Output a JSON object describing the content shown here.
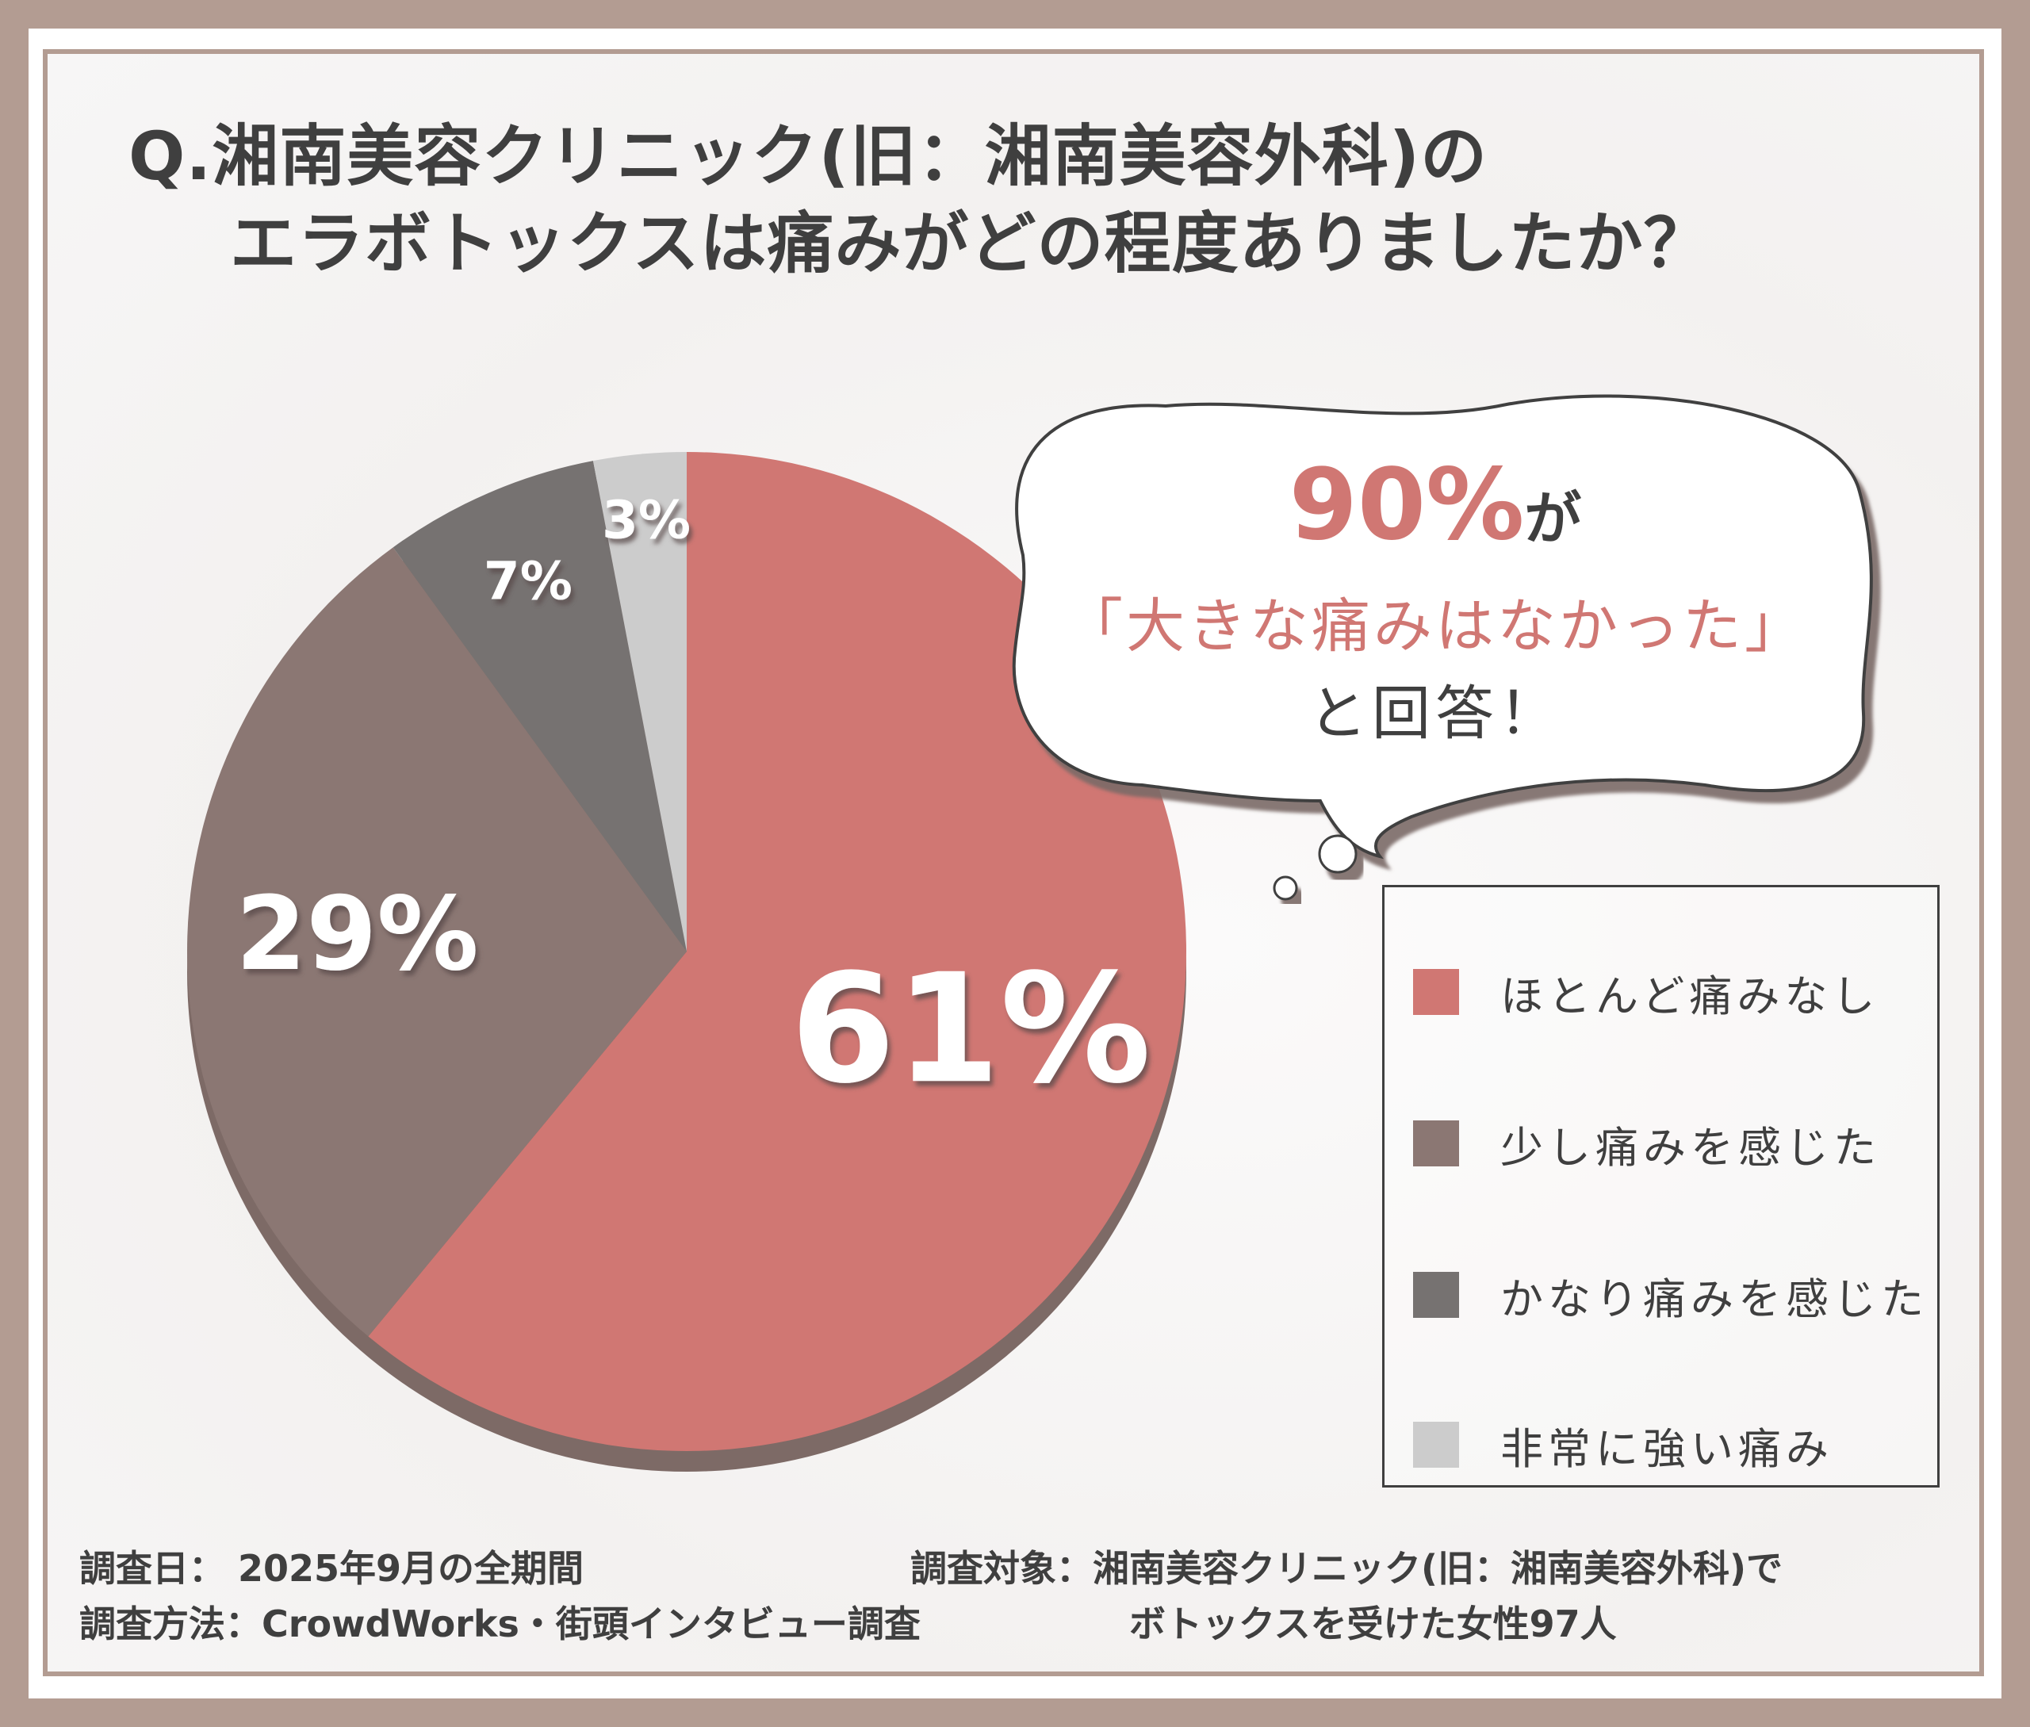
{
  "title": {
    "line1": "Q.湘南美容クリニック(旧：湘南美容外科)の",
    "line2": "エラボトックスは痛みがどの程度ありましたか？"
  },
  "colors": {
    "border": "#b39c92",
    "text": "#3f3f3f",
    "accent": "#d07773",
    "pie_shadow": "#7d6a66"
  },
  "chart_data": {
    "type": "pie",
    "slices": [
      {
        "label": "ほとんど痛みなし",
        "value": 61,
        "display": "61%",
        "color": "#d07773"
      },
      {
        "label": "少し痛みを感じた",
        "value": 29,
        "display": "29%",
        "color": "#8b7773"
      },
      {
        "label": "かなり痛みを感じた",
        "value": 7,
        "display": "7%",
        "color": "#767271"
      },
      {
        "label": "非常に強い痛み",
        "value": 3,
        "display": "3%",
        "color": "#cccccc"
      }
    ],
    "legend_position": "right"
  },
  "callout": {
    "big": "90%",
    "ga": "が",
    "middle": "「大きな痛みはなかった」",
    "end": "と回答！"
  },
  "footer": {
    "date": "調査日： 2025年9月の全期間",
    "method": "調査方法：CrowdWorks・街頭インタビュー調査",
    "subject": "調査対象：湘南美容クリニック(旧：湘南美容外科)で",
    "subject2": "ボトックスを受けた女性97人"
  }
}
